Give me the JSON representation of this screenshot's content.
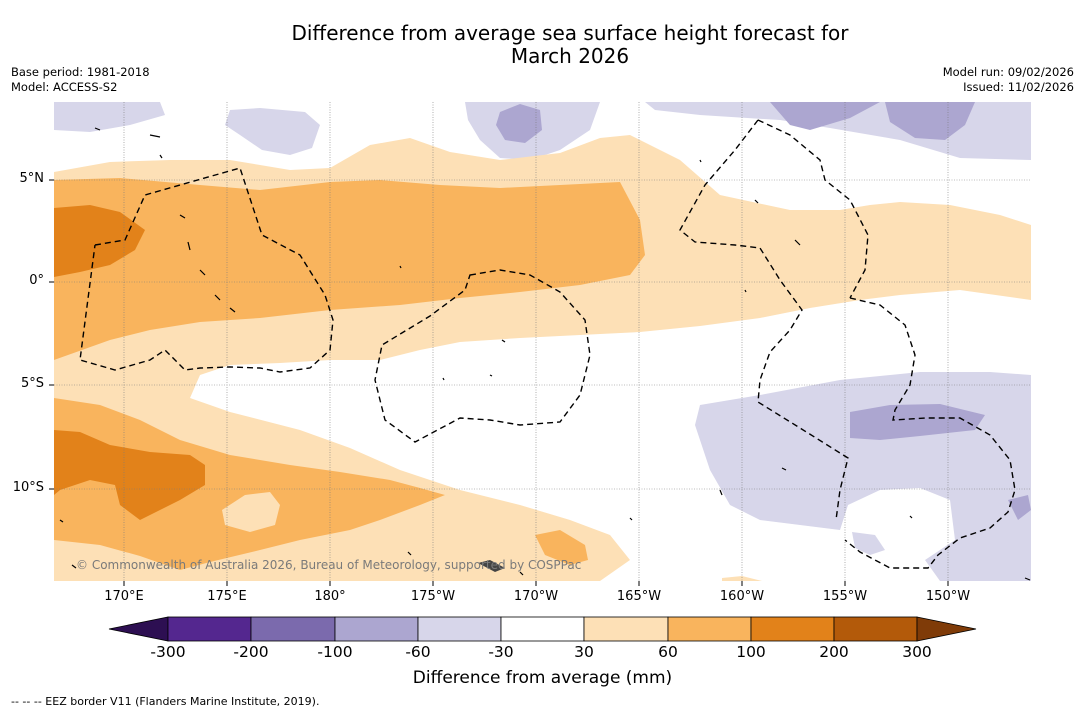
{
  "title": {
    "line1": "Difference from average sea surface height forecast for",
    "line2": "March 2026"
  },
  "metadata": {
    "base_period": "Base period: 1981-2018",
    "model": "Model: ACCESS-S2",
    "model_run": "Model run: 09/02/2026",
    "issued": "Issued: 11/02/2026"
  },
  "axes": {
    "latitudes": [
      "5°N",
      "0°",
      "5°S",
      "10°S"
    ],
    "longitudes": [
      "170°E",
      "175°E",
      "180°",
      "175°W",
      "170°W",
      "165°W",
      "160°W",
      "155°W",
      "150°W"
    ]
  },
  "colorbar": {
    "title": "Difference from average (mm)",
    "labels": [
      "-300",
      "-200",
      "-100",
      "-60",
      "-30",
      "30",
      "60",
      "100",
      "200",
      "300"
    ],
    "colors": {
      "below": "#2d0f52",
      "n300_200": "#54278f",
      "n200_100": "#7b6aad",
      "n100_60": "#aca6d0",
      "n60_30": "#d7d6ea",
      "n30_30": "#ffffff",
      "p30_60": "#fde0b6",
      "p60_100": "#f9b45d",
      "p100_200": "#e2821a",
      "p200_300": "#b35a0a",
      "above": "#7f3b08"
    }
  },
  "copyright": "© Commonwealth of Australia 2026, Bureau of Meteorology, supported by COSPPac",
  "footnote": "--  --  -- EEZ border V11 (Flanders Marine Institute, 2019)."
}
